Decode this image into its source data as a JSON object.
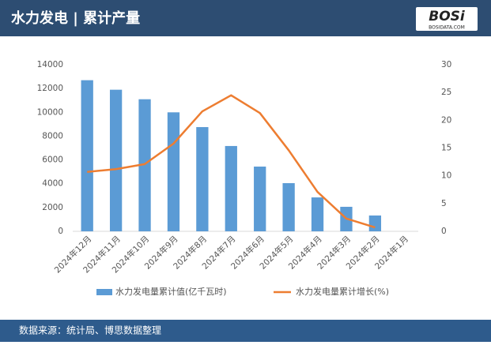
{
  "chart_data": {
    "type": "bar",
    "title": "水力发电 | 累计产量",
    "logo": "BOSi",
    "logo_sub": "BOSIDATA.COM",
    "source": "数据来源：统计局、博思数据整理",
    "categories": [
      "2024年12月",
      "2024年11月",
      "2024年10月",
      "2024年9月",
      "2024年8月",
      "2024年7月",
      "2024年6月",
      "2024年5月",
      "2024年4月",
      "2024年3月",
      "2024年2月",
      "2024年1月"
    ],
    "series": [
      {
        "name": "水力发电量累计值(亿千瓦时)",
        "type": "bar",
        "color": "#5b9bd5",
        "axis": "y",
        "values": [
          12700,
          11900,
          11100,
          10000,
          8760,
          7170,
          5440,
          4050,
          2850,
          2060,
          1330,
          null
        ]
      },
      {
        "name": "水力发电量累计增长(%)",
        "type": "line",
        "color": "#ed7d31",
        "axis": "y2",
        "values": [
          10.7,
          11.2,
          12.1,
          15.8,
          21.6,
          24.5,
          21.3,
          14.6,
          7.1,
          2.3,
          0.7,
          null
        ]
      }
    ],
    "ylim": [
      0,
      14000
    ],
    "yticks": [
      0,
      2000,
      4000,
      6000,
      8000,
      10000,
      12000,
      14000
    ],
    "y2lim": [
      0,
      30
    ],
    "y2ticks": [
      0,
      5,
      10,
      15,
      20,
      25,
      30
    ],
    "legend": "bottom"
  }
}
